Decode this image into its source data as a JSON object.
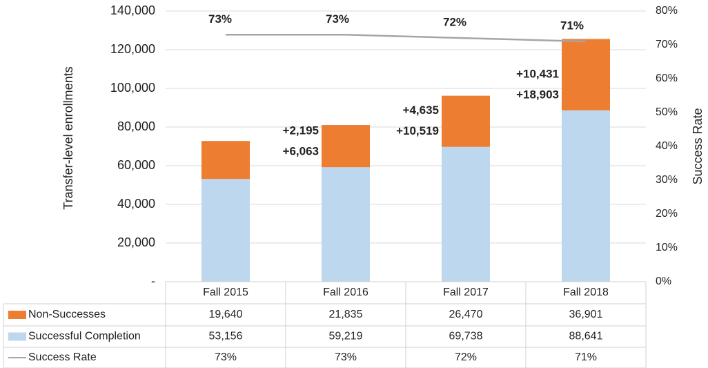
{
  "chart_data": {
    "type": "bar",
    "categories": [
      "Fall 2015",
      "Fall 2016",
      "Fall 2017",
      "Fall 2018"
    ],
    "series": [
      {
        "name": "Non-Successes",
        "color": "#ed7d31",
        "values": [
          19640,
          21835,
          26470,
          36901
        ],
        "value_labels": [
          "19,640",
          "21,835",
          "26,470",
          "36,901"
        ],
        "annotations": [
          null,
          "+2,195",
          "+4,635",
          "+10,431"
        ]
      },
      {
        "name": "Successful Completion",
        "color": "#bdd7ee",
        "values": [
          53156,
          59219,
          69738,
          88641
        ],
        "value_labels": [
          "53,156",
          "59,219",
          "69,738",
          "88,641"
        ],
        "annotations": [
          null,
          "+6,063",
          "+10,519",
          "+18,903"
        ]
      },
      {
        "name": "Success Rate",
        "type": "line",
        "axis": "y2",
        "color": "#a5a5a5",
        "values": [
          73,
          73,
          72,
          71
        ],
        "value_labels": [
          "73%",
          "73%",
          "72%",
          "71%"
        ]
      }
    ],
    "ylabel": "Transfer-level enrollments",
    "y2label": "Success Rate",
    "ylim": [
      0,
      140000
    ],
    "yticks": [
      {
        "value": 0,
        "label": "-"
      },
      {
        "value": 20000,
        "label": "20,000"
      },
      {
        "value": 40000,
        "label": "40,000"
      },
      {
        "value": 60000,
        "label": "60,000"
      },
      {
        "value": 80000,
        "label": "80,000"
      },
      {
        "value": 100000,
        "label": "100,000"
      },
      {
        "value": 120000,
        "label": "120,000"
      },
      {
        "value": 140000,
        "label": "140,000"
      }
    ],
    "y2lim": [
      0,
      80
    ],
    "y2ticks": [
      {
        "value": 0,
        "label": "0%"
      },
      {
        "value": 10,
        "label": "10%"
      },
      {
        "value": 20,
        "label": "20%"
      },
      {
        "value": 30,
        "label": "30%"
      },
      {
        "value": 40,
        "label": "40%"
      },
      {
        "value": 50,
        "label": "50%"
      },
      {
        "value": 60,
        "label": "60%"
      },
      {
        "value": 70,
        "label": "70%"
      },
      {
        "value": 80,
        "label": "80%"
      }
    ],
    "grid": true,
    "data_table": true
  }
}
